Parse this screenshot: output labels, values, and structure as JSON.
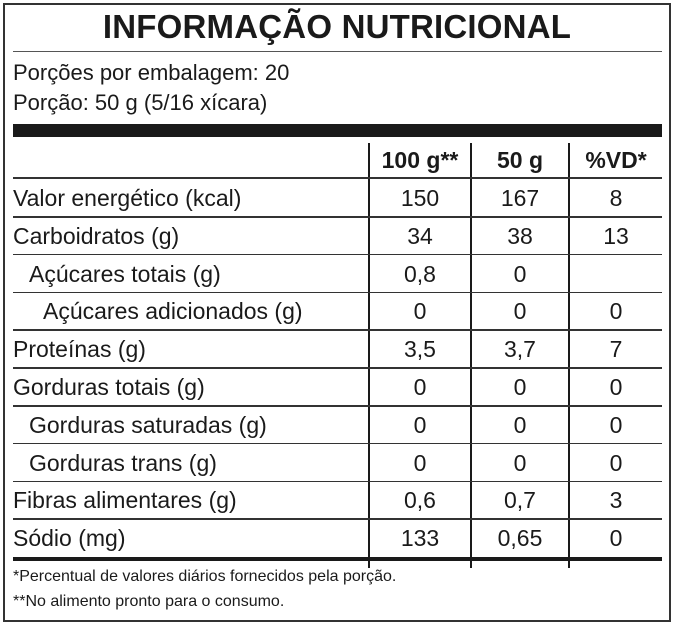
{
  "title": "INFORMAÇÃO NUTRICIONAL",
  "servings_per_package": "Porções por embalagem: 20",
  "serving_size": "Porção: 50 g (5/16 xícara)",
  "columns": [
    "100 g**",
    "50 g",
    "%VD*"
  ],
  "rows": [
    {
      "name": "Valor energético (kcal)",
      "indent": 0,
      "v100": "150",
      "v50": "167",
      "vd": "8"
    },
    {
      "name": "Carboidratos (g)",
      "indent": 0,
      "v100": "34",
      "v50": "38",
      "vd": "13"
    },
    {
      "name": "Açúcares totais (g)",
      "indent": 1,
      "v100": "0,8",
      "v50": "0",
      "vd": ""
    },
    {
      "name": "Açúcares adicionados (g)",
      "indent": 2,
      "v100": "0",
      "v50": "0",
      "vd": "0"
    },
    {
      "name": "Proteínas (g)",
      "indent": 0,
      "v100": "3,5",
      "v50": "3,7",
      "vd": "7"
    },
    {
      "name": "Gorduras totais (g)",
      "indent": 0,
      "v100": "0",
      "v50": "0",
      "vd": "0"
    },
    {
      "name": "Gorduras saturadas (g)",
      "indent": 1,
      "v100": "0",
      "v50": "0",
      "vd": "0"
    },
    {
      "name": "Gorduras trans (g)",
      "indent": 1,
      "v100": "0",
      "v50": "0",
      "vd": "0"
    },
    {
      "name": "Fibras alimentares (g)",
      "indent": 0,
      "v100": "0,6",
      "v50": "0,7",
      "vd": "3"
    },
    {
      "name": "Sódio (mg)",
      "indent": 0,
      "v100": "133",
      "v50": "0,65",
      "vd": "0"
    }
  ],
  "footnotes": [
    "*Percentual de valores diários fornecidos pela porção.",
    "**No alimento pronto para o consumo."
  ]
}
